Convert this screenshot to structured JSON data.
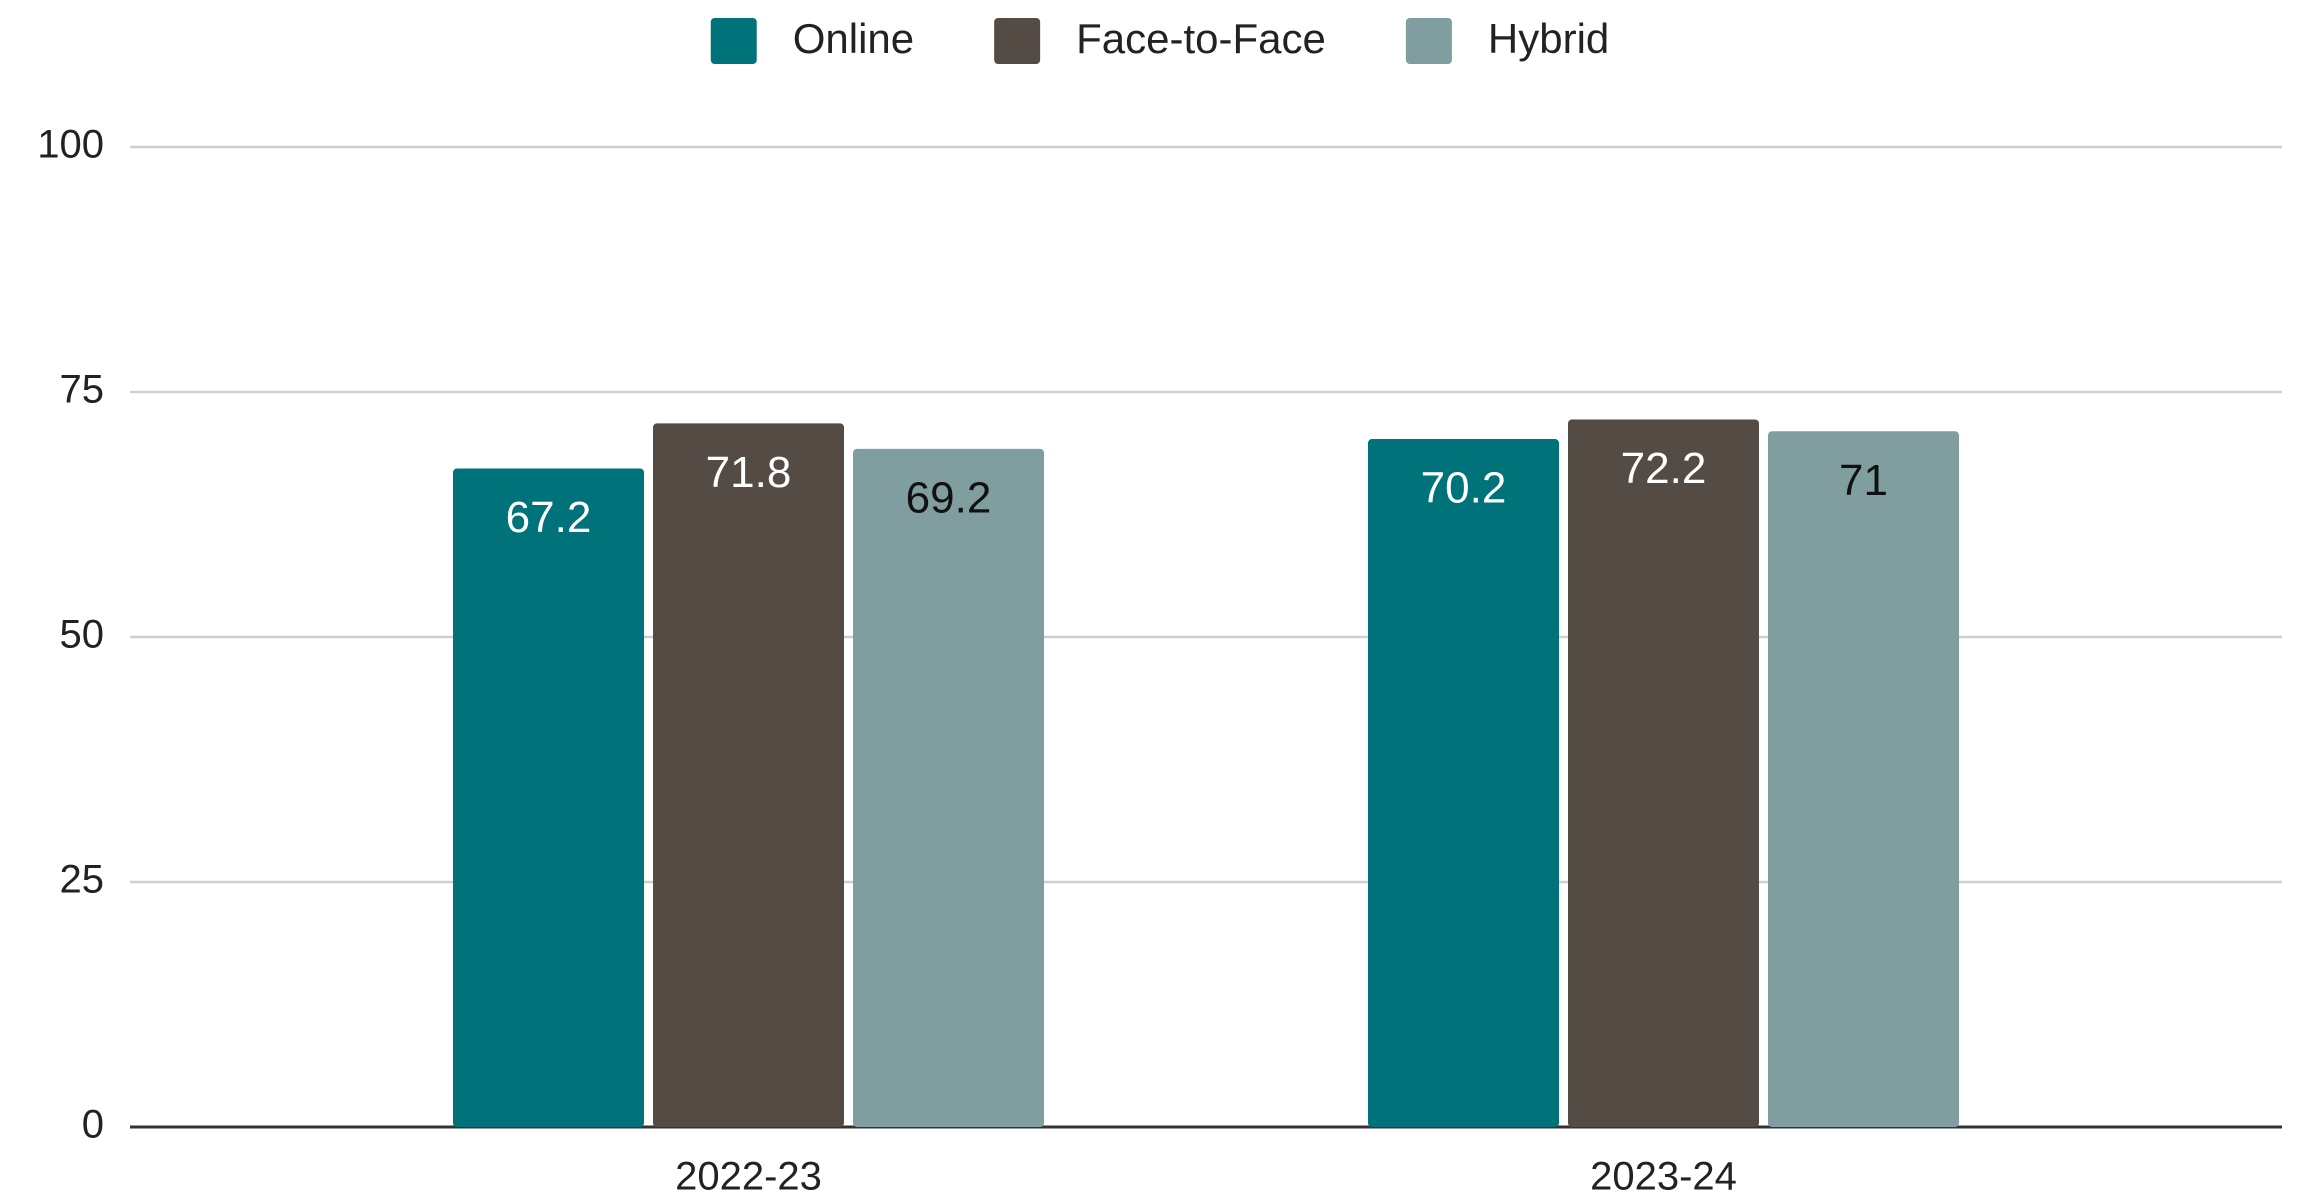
{
  "chart_data": {
    "type": "bar",
    "categories": [
      "2022-23",
      "2023-24"
    ],
    "series": [
      {
        "name": "Online",
        "color": "#00727a",
        "values": [
          67.2,
          70.2
        ]
      },
      {
        "name": "Face-to-Face",
        "color": "#554b45",
        "values": [
          71.8,
          72.2
        ]
      },
      {
        "name": "Hybrid",
        "color": "#809e9f",
        "values": [
          69.2,
          71
        ]
      }
    ],
    "ylim": [
      0,
      100
    ],
    "yticks": [
      0,
      25,
      50,
      75,
      100
    ],
    "grid": true,
    "legend": "top"
  }
}
